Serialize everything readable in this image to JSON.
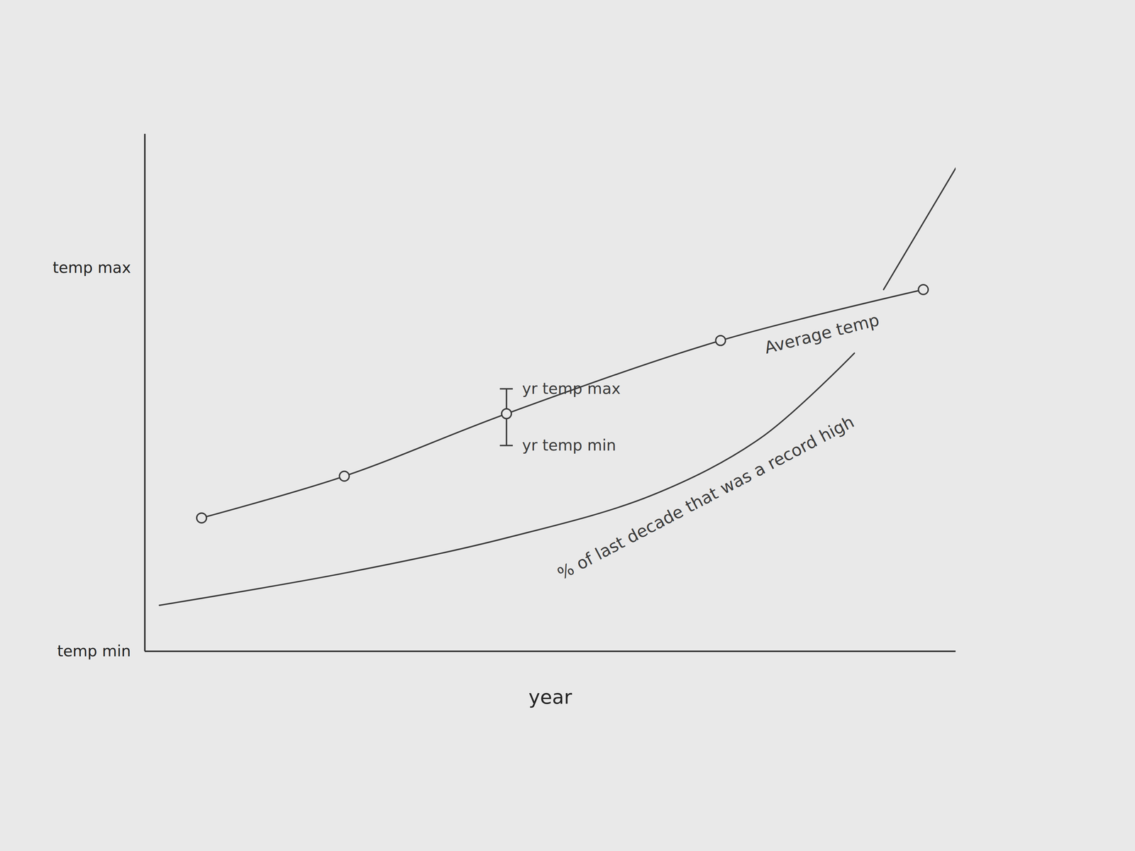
{
  "chart_data": {
    "type": "line",
    "x_label": "year",
    "xlim": [
      0,
      100
    ],
    "xticks": [],
    "ylim": [
      0,
      135
    ],
    "yticks": [
      {
        "value": 0,
        "label": "temp min"
      },
      {
        "value": 100,
        "label": "temp max"
      }
    ],
    "tick_labels": "y",
    "grid": false,
    "series": [
      {
        "name": "Average temp",
        "color": "#3a3a3a",
        "marker": "circle",
        "line_style": "solid",
        "x": [
          7.0,
          24.6,
          44.6,
          71.0,
          96.0
        ],
        "values": [
          34.8,
          45.7,
          62.0,
          81.1,
          94.4
        ],
        "error_bar": {
          "x": 44.6,
          "low": 53.7,
          "high": 68.5,
          "low_label": "yr temp min",
          "high_label": "yr temp max"
        }
      },
      {
        "name": "% of last decade that was a record high",
        "color": "#3a3a3a",
        "line_style": "solid",
        "x": [
          1.8,
          24.6,
          44.6,
          62.5,
          75.9,
          87.5
        ],
        "values": [
          12.0,
          20.4,
          29.6,
          40.7,
          55.6,
          77.8
        ]
      },
      {
        "color": "#3a3a3a",
        "line_style": "solid",
        "x": [
          91.1,
          100
        ],
        "values": [
          94.4,
          126.1
        ]
      }
    ]
  }
}
